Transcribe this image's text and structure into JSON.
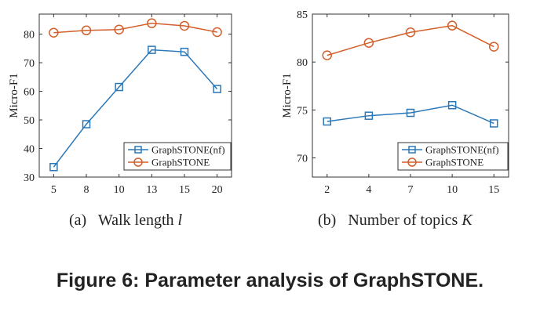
{
  "colors": {
    "nf": "#2a78b8",
    "full": "#d35f2a",
    "axis": "#333333"
  },
  "chart_data": [
    {
      "type": "line",
      "id": "a",
      "caption_label": "(a)",
      "caption_text": "Walk length",
      "caption_var": "l",
      "xlabel": "",
      "ylabel": "Micro-F1",
      "categories": [
        "5",
        "8",
        "10",
        "13",
        "15",
        "20"
      ],
      "ylim": [
        30,
        87
      ],
      "yticks": [
        30,
        40,
        50,
        60,
        70,
        80
      ],
      "legend_position": "bottom-right",
      "series": [
        {
          "name": "GraphSTONE(nf)",
          "marker": "square",
          "color": "#2a78b8",
          "values": [
            33.5,
            48.5,
            61.5,
            74.5,
            73.8,
            60.8
          ]
        },
        {
          "name": "GraphSTONE",
          "marker": "circle",
          "color": "#d35f2a",
          "values": [
            80.5,
            81.3,
            81.6,
            83.8,
            82.9,
            80.7
          ]
        }
      ]
    },
    {
      "type": "line",
      "id": "b",
      "caption_label": "(b)",
      "caption_text": "Number of topics",
      "caption_var": "K",
      "xlabel": "",
      "ylabel": "Micro-F1",
      "categories": [
        "2",
        "4",
        "7",
        "10",
        "15"
      ],
      "ylim": [
        68,
        85
      ],
      "yticks": [
        70,
        75,
        80,
        85
      ],
      "legend_position": "bottom-right",
      "series": [
        {
          "name": "GraphSTONE(nf)",
          "marker": "square",
          "color": "#2a78b8",
          "values": [
            73.8,
            74.4,
            74.7,
            75.5,
            73.6
          ]
        },
        {
          "name": "GraphSTONE",
          "marker": "circle",
          "color": "#d35f2a",
          "values": [
            80.7,
            82.0,
            83.1,
            83.8,
            81.6
          ]
        }
      ]
    }
  ],
  "figure_caption": "Figure 6: Parameter analysis of GraphSTONE."
}
